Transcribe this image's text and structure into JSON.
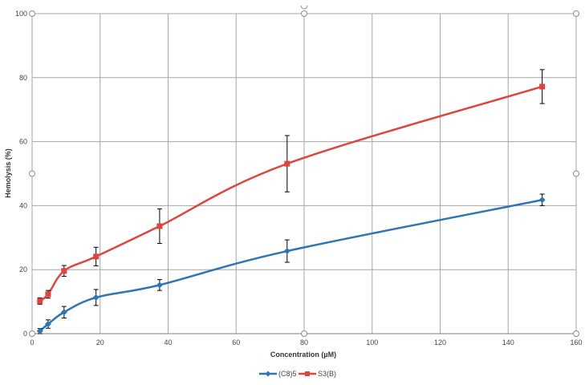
{
  "chart_data": {
    "type": "line",
    "title": "",
    "xlabel": "Concentration (µM)",
    "ylabel": "Hemolysis (%)",
    "xlim": [
      0,
      160
    ],
    "ylim": [
      0,
      100
    ],
    "x_ticks": [
      0,
      20,
      40,
      60,
      80,
      100,
      120,
      140,
      160
    ],
    "y_ticks": [
      0,
      20,
      40,
      60,
      80,
      100
    ],
    "grid": true,
    "legend_position": "bottom",
    "x": [
      2.3,
      4.7,
      9.4,
      18.8,
      37.5,
      75,
      150
    ],
    "series": [
      {
        "name": "(C8)5",
        "color": "#2e75b6",
        "marker": "diamond",
        "values": [
          0.8,
          3.0,
          6.7,
          11.3,
          15.2,
          25.8,
          41.8
        ],
        "errors": [
          0.8,
          1.3,
          1.8,
          2.5,
          1.7,
          3.5,
          1.8
        ]
      },
      {
        "name": "S3(B)",
        "color": "#e0443c",
        "marker": "square",
        "values": [
          10.2,
          12.3,
          19.6,
          24.1,
          33.6,
          53.1,
          77.2
        ],
        "errors": [
          1.0,
          1.2,
          1.7,
          2.9,
          5.4,
          8.8,
          5.3
        ]
      }
    ],
    "smooth": true,
    "error_bars": true
  }
}
